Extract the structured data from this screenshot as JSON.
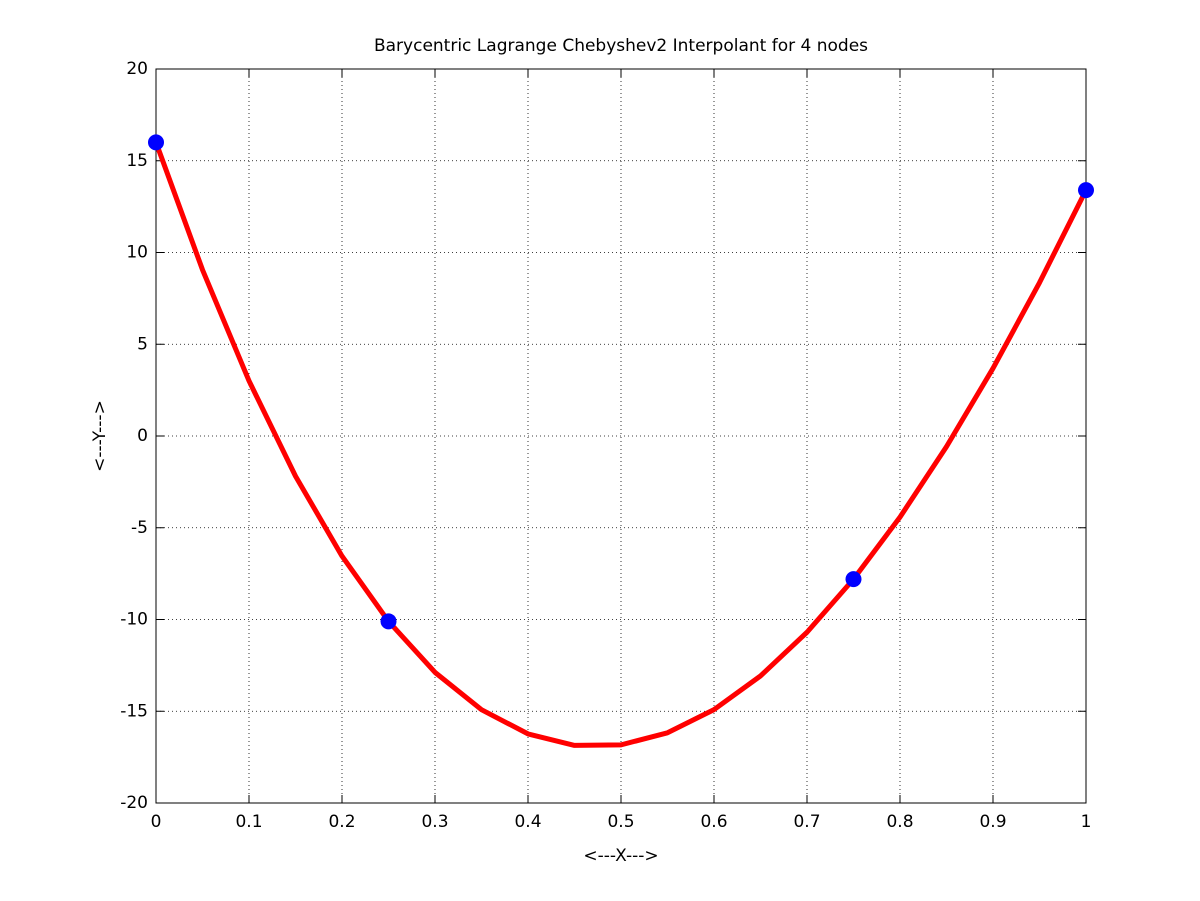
{
  "chart_data": {
    "type": "line",
    "title": "Barycentric Lagrange Chebyshev2 Interpolant for 4 nodes",
    "xlabel": "<---X--->",
    "ylabel": "<---Y--->",
    "xlim": [
      0,
      1
    ],
    "xticks": [
      0,
      0.1,
      0.2,
      0.3,
      0.4,
      0.5,
      0.6,
      0.7,
      0.8,
      0.9,
      1
    ],
    "ylim": [
      -20,
      20
    ],
    "yticks": [
      -20,
      -15,
      -10,
      -5,
      0,
      5,
      10,
      15,
      20
    ],
    "grid": true,
    "series": [
      {
        "mode": "line",
        "color": "#ff0000",
        "x": [
          0,
          0.05,
          0.1,
          0.15,
          0.2,
          0.25,
          0.3,
          0.35,
          0.4,
          0.45,
          0.5,
          0.55,
          0.6,
          0.65,
          0.7,
          0.75,
          0.8,
          0.85,
          0.9,
          0.95,
          1
        ],
        "values": [
          16,
          9.058,
          3.006,
          -2.186,
          -6.545,
          -10.1,
          -12.881,
          -14.916,
          -16.234,
          -16.863,
          -16.833,
          -16.173,
          -14.91,
          -13.075,
          -10.695,
          -7.8,
          -4.419,
          -0.579,
          3.69,
          8.358,
          13.4
        ]
      },
      {
        "mode": "markers",
        "color": "#0000ff",
        "x": [
          0,
          0.25,
          0.75,
          1
        ],
        "values": [
          16,
          -10.1,
          -7.8,
          13.4
        ]
      }
    ]
  }
}
